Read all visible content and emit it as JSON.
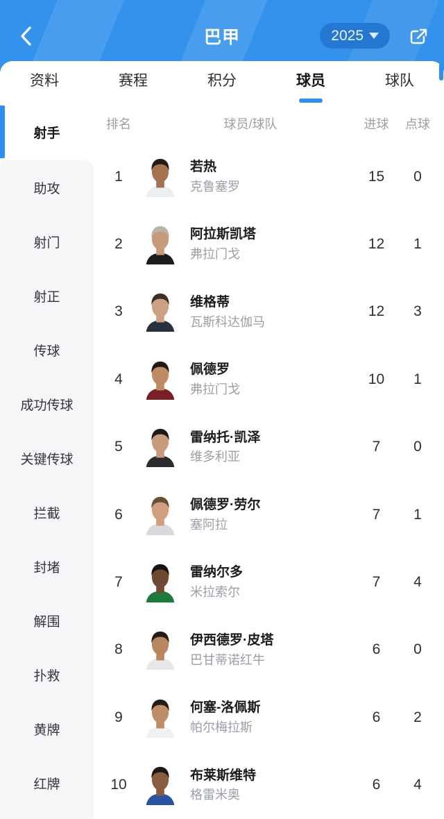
{
  "header": {
    "title": "巴甲",
    "season": "2025",
    "back_icon": "chevron-left-icon",
    "dropdown_icon": "caret-down-icon",
    "share_icon": "share-icon"
  },
  "colors": {
    "header_blue": "#3392ec",
    "pill_blue": "#2478d2",
    "accent_blue": "#2e8ff2",
    "sidebar_gray": "#f5f6f8",
    "muted_text": "#9b9ea3"
  },
  "tabs": [
    {
      "label": "资料",
      "active": false
    },
    {
      "label": "赛程",
      "active": false
    },
    {
      "label": "积分",
      "active": false
    },
    {
      "label": "球员",
      "active": true
    },
    {
      "label": "球队",
      "active": false
    }
  ],
  "sidebar": [
    {
      "label": "射手",
      "active": true
    },
    {
      "label": "助攻",
      "active": false
    },
    {
      "label": "射门",
      "active": false
    },
    {
      "label": "射正",
      "active": false
    },
    {
      "label": "传球",
      "active": false
    },
    {
      "label": "成功传球",
      "active": false
    },
    {
      "label": "关键传球",
      "active": false
    },
    {
      "label": "拦截",
      "active": false
    },
    {
      "label": "封堵",
      "active": false
    },
    {
      "label": "解围",
      "active": false
    },
    {
      "label": "扑救",
      "active": false
    },
    {
      "label": "黄牌",
      "active": false
    },
    {
      "label": "红牌",
      "active": false
    }
  ],
  "table": {
    "headers": {
      "rank": "排名",
      "player": "球员/球队",
      "goals": "进球",
      "penalty": "点球"
    },
    "rows": [
      {
        "rank": "1",
        "name": "若热",
        "team": "克鲁塞罗",
        "goals": "15",
        "penalty": "0",
        "avatar": {
          "skin": "#a5714f",
          "hair": "#241c18",
          "jersey": "#eceff1"
        }
      },
      {
        "rank": "2",
        "name": "阿拉斯凯塔",
        "team": "弗拉门戈",
        "goals": "12",
        "penalty": "1",
        "avatar": {
          "skin": "#c79b7a",
          "hair": "#b9b3a8",
          "jersey": "#1c1c1e"
        }
      },
      {
        "rank": "3",
        "name": "维格蒂",
        "team": "瓦斯科达伽马",
        "goals": "12",
        "penalty": "3",
        "avatar": {
          "skin": "#cfa183",
          "hair": "#3a3028",
          "jersey": "#27323e"
        }
      },
      {
        "rank": "4",
        "name": "佩德罗",
        "team": "弗拉门戈",
        "goals": "10",
        "penalty": "1",
        "avatar": {
          "skin": "#c08a64",
          "hair": "#201a16",
          "jersey": "#7a1f24"
        }
      },
      {
        "rank": "5",
        "name": "雷纳托·凯泽",
        "team": "维多利亚",
        "goals": "7",
        "penalty": "0",
        "avatar": {
          "skin": "#c99b7d",
          "hair": "#1d1a17",
          "jersey": "#2b2b2d"
        }
      },
      {
        "rank": "6",
        "name": "佩德罗·劳尔",
        "team": "塞阿拉",
        "goals": "7",
        "penalty": "1",
        "avatar": {
          "skin": "#cf9f7e",
          "hair": "#6b4f35",
          "jersey": "#d9dadc"
        }
      },
      {
        "rank": "7",
        "name": "雷纳尔多",
        "team": "米拉索尔",
        "goals": "7",
        "penalty": "4",
        "avatar": {
          "skin": "#6f4a33",
          "hair": "#161311",
          "jersey": "#1e7a3c"
        }
      },
      {
        "rank": "8",
        "name": "伊西德罗·皮塔",
        "team": "巴甘蒂诺红牛",
        "goals": "6",
        "penalty": "0",
        "avatar": {
          "skin": "#b9875f",
          "hair": "#241e19",
          "jersey": "#e8e8ea"
        }
      },
      {
        "rank": "9",
        "name": "何塞-洛佩斯",
        "team": "帕尔梅拉斯",
        "goals": "6",
        "penalty": "2",
        "avatar": {
          "skin": "#c08e66",
          "hair": "#231d18",
          "jersey": "#f0f1f2"
        }
      },
      {
        "rank": "10",
        "name": "布莱斯维特",
        "team": "格雷米奥",
        "goals": "6",
        "penalty": "4",
        "avatar": {
          "skin": "#8a5b3c",
          "hair": "#1c1713",
          "jersey": "#2b53a0"
        }
      }
    ]
  }
}
